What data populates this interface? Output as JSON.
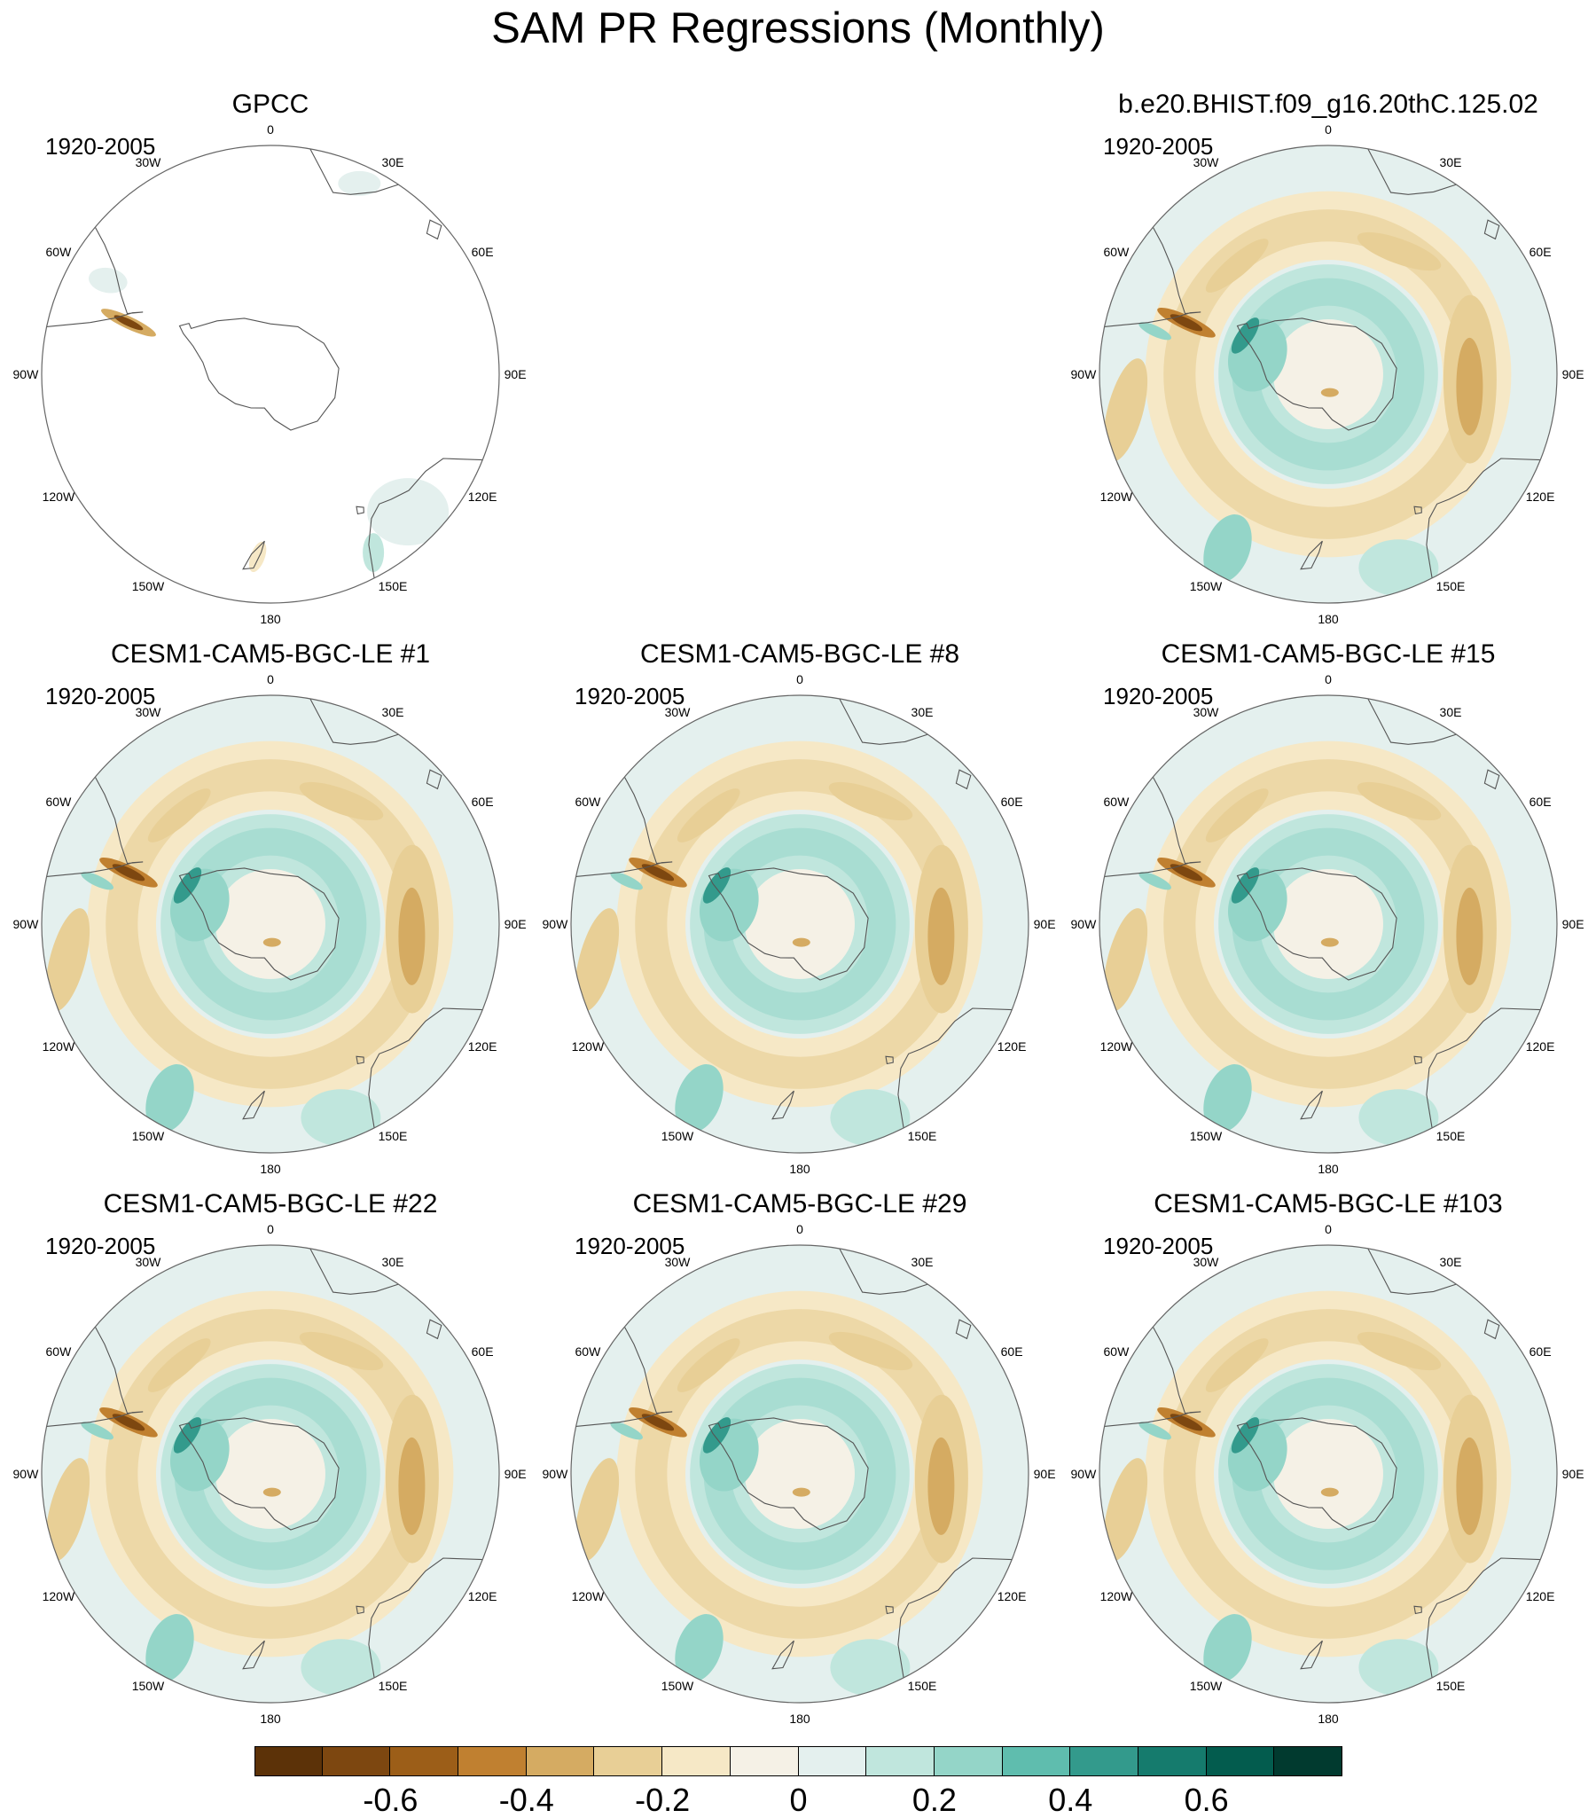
{
  "title": "SAM PR Regressions (Monthly)",
  "longitude_labels": [
    "0",
    "30E",
    "60E",
    "90E",
    "120E",
    "150E",
    "180",
    "150W",
    "120W",
    "90W",
    "60W",
    "30W"
  ],
  "colorbar": {
    "colors": [
      "#5c3208",
      "#7d4710",
      "#9c5e18",
      "#c08030",
      "#d5ab62",
      "#e8cf96",
      "#f6e8c6",
      "#f5f1e6",
      "#e4f0ee",
      "#c0e6dd",
      "#94d5c8",
      "#5fbdae",
      "#339a8c",
      "#157b6d",
      "#035c4e",
      "#013a2f"
    ],
    "tick_labels": [
      "-0.6",
      "-0.4",
      "-0.2",
      "0",
      "0.2",
      "0.4",
      "0.6"
    ],
    "tick_segment_index": [
      2,
      4,
      6,
      8,
      10,
      12,
      14
    ]
  },
  "panels": [
    {
      "title": "GPCC",
      "period": "1920-2005",
      "field": "obs"
    },
    {
      "title": "b.e20.BHIST.f09_g16.20thC.125.02",
      "period": "1920-2005",
      "field": "model"
    },
    {
      "title": "CESM1-CAM5-BGC-LE #1",
      "period": "1920-2005",
      "field": "model"
    },
    {
      "title": "CESM1-CAM5-BGC-LE #8",
      "period": "1920-2005",
      "field": "model"
    },
    {
      "title": "CESM1-CAM5-BGC-LE #15",
      "period": "1920-2005",
      "field": "model"
    },
    {
      "title": "CESM1-CAM5-BGC-LE #22",
      "period": "1920-2005",
      "field": "model"
    },
    {
      "title": "CESM1-CAM5-BGC-LE #29",
      "period": "1920-2005",
      "field": "model"
    },
    {
      "title": "CESM1-CAM5-BGC-LE #103",
      "period": "1920-2005",
      "field": "model"
    }
  ]
}
